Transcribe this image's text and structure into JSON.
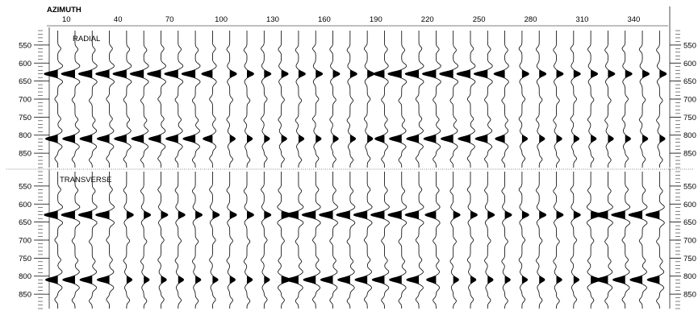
{
  "chart_data": [
    {
      "type": "line",
      "title": "",
      "panel_label": "RADIAL",
      "xlabel": "AZIMUTH",
      "ylabel": "",
      "x_ticks": [
        10,
        40,
        70,
        100,
        130,
        160,
        190,
        220,
        250,
        280,
        310,
        340
      ],
      "y_ticks": [
        550,
        600,
        650,
        700,
        750,
        800,
        850
      ],
      "ylim": [
        510,
        890
      ],
      "grid": false,
      "x": [
        5,
        15,
        25,
        35,
        45,
        55,
        65,
        75,
        85,
        95,
        105,
        115,
        125,
        135,
        145,
        155,
        165,
        175,
        185,
        195,
        205,
        215,
        225,
        235,
        245,
        255,
        265,
        275,
        285,
        295,
        305,
        315,
        325,
        335,
        345,
        355
      ],
      "main_arrivals": [
        {
          "time_ms": 630,
          "polarity": [
            -1,
            -1,
            -1,
            -1,
            -1,
            -1,
            -1,
            -1,
            -1,
            -1,
            1,
            1,
            1,
            1,
            1,
            1,
            1,
            1,
            1,
            -1,
            -1,
            -1,
            -1,
            -1,
            -1,
            -1,
            -1,
            1,
            1,
            1,
            1,
            1,
            1,
            1,
            1,
            1
          ],
          "amplitude": [
            1,
            1,
            1,
            1,
            1,
            1,
            1,
            1,
            1,
            0.8,
            0.5,
            0.5,
            0.5,
            0.5,
            0.5,
            0.5,
            0.5,
            0.5,
            0.5,
            0.8,
            1,
            1,
            1,
            1,
            1,
            1,
            0.8,
            0.5,
            0.5,
            0.5,
            0.5,
            0.5,
            0.5,
            0.5,
            0.5,
            0.5
          ]
        },
        {
          "time_ms": 810,
          "polarity": [
            -1,
            -1,
            -1,
            -1,
            -1,
            -1,
            -1,
            -1,
            -1,
            -1,
            1,
            1,
            1,
            1,
            1,
            1,
            1,
            1,
            1,
            -1,
            -1,
            -1,
            -1,
            -1,
            -1,
            -1,
            -1,
            1,
            1,
            1,
            1,
            1,
            1,
            1,
            1,
            1
          ],
          "amplitude": [
            0.9,
            0.9,
            0.9,
            0.9,
            0.9,
            0.9,
            0.9,
            0.9,
            0.9,
            0.7,
            0.4,
            0.4,
            0.4,
            0.4,
            0.4,
            0.4,
            0.4,
            0.4,
            0.4,
            0.7,
            0.9,
            0.9,
            0.9,
            0.9,
            0.9,
            0.9,
            0.7,
            0.4,
            0.4,
            0.4,
            0.4,
            0.4,
            0.4,
            0.4,
            0.4,
            0.4
          ]
        }
      ]
    },
    {
      "type": "line",
      "title": "",
      "panel_label": "TRANSVERSE",
      "xlabel": "AZIMUTH",
      "ylabel": "",
      "x_ticks": [
        10,
        40,
        70,
        100,
        130,
        160,
        190,
        220,
        250,
        280,
        310,
        340
      ],
      "y_ticks": [
        550,
        600,
        650,
        700,
        750,
        800,
        850
      ],
      "ylim": [
        510,
        890
      ],
      "grid": false,
      "x": [
        5,
        15,
        25,
        35,
        45,
        55,
        65,
        75,
        85,
        95,
        105,
        115,
        125,
        135,
        145,
        155,
        165,
        175,
        185,
        195,
        205,
        215,
        225,
        235,
        245,
        255,
        265,
        275,
        285,
        295,
        305,
        315,
        325,
        335,
        345,
        355
      ],
      "main_arrivals": [
        {
          "time_ms": 630,
          "polarity": [
            -1,
            -1,
            -1,
            -1,
            1,
            1,
            1,
            1,
            1,
            1,
            1,
            1,
            1,
            1,
            -1,
            -1,
            -1,
            -1,
            -1,
            -1,
            -1,
            -1,
            -1,
            1,
            1,
            1,
            1,
            1,
            1,
            1,
            1,
            1,
            -1,
            -1,
            -1,
            -1
          ],
          "amplitude": [
            1,
            1,
            1,
            1,
            0.5,
            0.5,
            0.5,
            0.5,
            0.5,
            0.5,
            0.5,
            0.5,
            0.5,
            0.8,
            1,
            1,
            1,
            1,
            1,
            1,
            1,
            1,
            0.8,
            0.5,
            0.5,
            0.5,
            0.5,
            0.5,
            0.5,
            0.5,
            0.5,
            0.8,
            1,
            1,
            1,
            1
          ]
        },
        {
          "time_ms": 810,
          "polarity": [
            -1,
            -1,
            -1,
            -1,
            1,
            1,
            1,
            1,
            1,
            1,
            1,
            1,
            1,
            1,
            -1,
            -1,
            -1,
            -1,
            -1,
            -1,
            -1,
            -1,
            -1,
            1,
            1,
            1,
            1,
            1,
            1,
            1,
            1,
            1,
            -1,
            -1,
            -1,
            -1
          ],
          "amplitude": [
            0.9,
            0.9,
            0.9,
            0.9,
            0.4,
            0.4,
            0.4,
            0.4,
            0.4,
            0.4,
            0.4,
            0.4,
            0.4,
            0.7,
            0.9,
            0.9,
            0.9,
            0.9,
            0.9,
            0.9,
            0.9,
            0.9,
            0.7,
            0.4,
            0.4,
            0.4,
            0.4,
            0.4,
            0.4,
            0.4,
            0.4,
            0.7,
            0.9,
            0.9,
            0.9,
            0.9
          ]
        }
      ]
    }
  ],
  "colors": {
    "trace": "#000000",
    "fill": "#000000",
    "background": "#ffffff",
    "grid_dots": "#888888"
  }
}
